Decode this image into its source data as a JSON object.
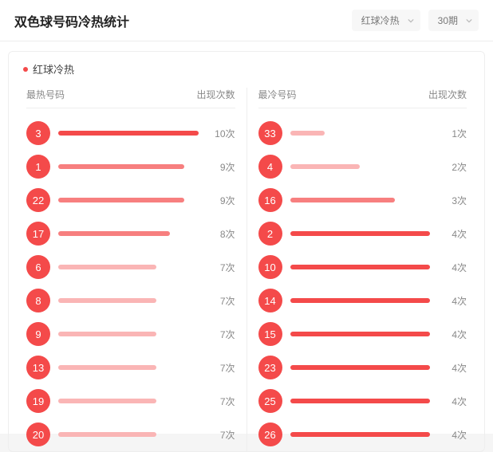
{
  "header": {
    "title": "双色球号码冷热统计",
    "select_type": "红球冷热",
    "select_period": "30期"
  },
  "card": {
    "title": "红球冷热",
    "dot_color": "#f44a4a"
  },
  "style": {
    "ball_color": "#f44a4a",
    "count_suffix": "次",
    "bar_color_hot": "#f44a4a",
    "bar_color_warm": "#f77f7f",
    "bar_color_cool": "#fab5b5"
  },
  "columns": {
    "hot": {
      "header_left": "最热号码",
      "header_right": "出现次数",
      "max_value": 10,
      "rows": [
        {
          "num": "3",
          "count": 10
        },
        {
          "num": "1",
          "count": 9
        },
        {
          "num": "22",
          "count": 9
        },
        {
          "num": "17",
          "count": 8
        },
        {
          "num": "6",
          "count": 7
        },
        {
          "num": "8",
          "count": 7
        },
        {
          "num": "9",
          "count": 7
        },
        {
          "num": "13",
          "count": 7
        },
        {
          "num": "19",
          "count": 7
        },
        {
          "num": "20",
          "count": 7
        }
      ]
    },
    "cold": {
      "header_left": "最冷号码",
      "header_right": "出现次数",
      "max_value": 4,
      "rows": [
        {
          "num": "33",
          "count": 1
        },
        {
          "num": "4",
          "count": 2
        },
        {
          "num": "16",
          "count": 3
        },
        {
          "num": "2",
          "count": 4
        },
        {
          "num": "10",
          "count": 4
        },
        {
          "num": "14",
          "count": 4
        },
        {
          "num": "15",
          "count": 4
        },
        {
          "num": "23",
          "count": 4
        },
        {
          "num": "25",
          "count": 4
        },
        {
          "num": "26",
          "count": 4
        }
      ]
    }
  }
}
